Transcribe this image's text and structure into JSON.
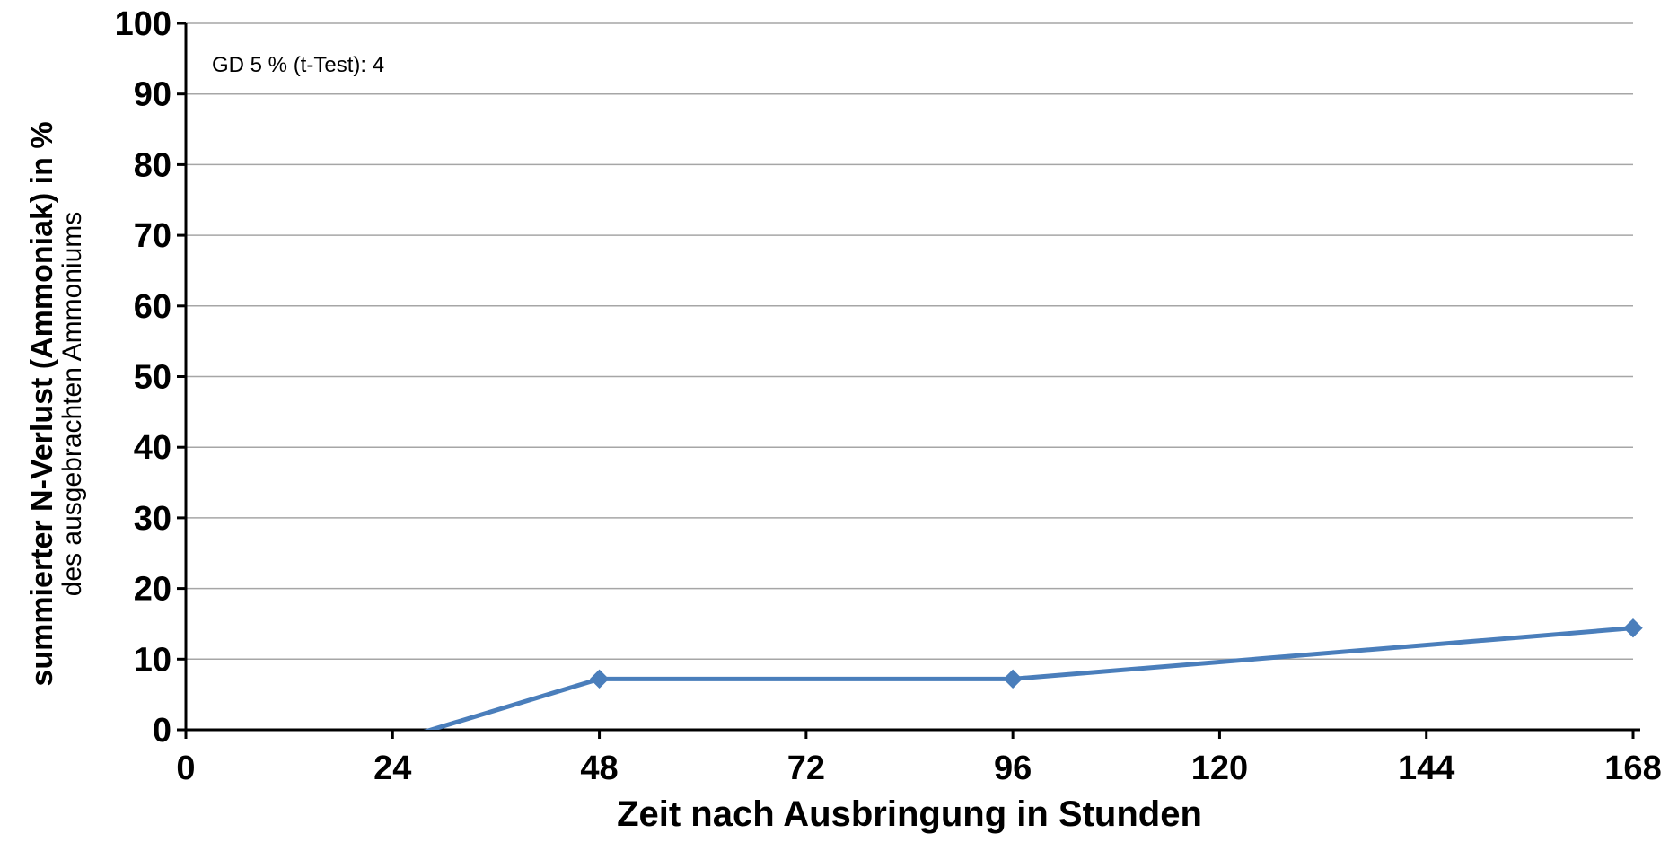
{
  "chart_data": {
    "type": "line",
    "xlabel": "Zeit nach Ausbringung in Stunden",
    "ylabel": "summierter N-Verlust (Ammoniak) in %",
    "ylabel_sub": "des ausgebrachten Ammoniums",
    "annotation": "GD 5 % (t-Test): 4",
    "xlim": [
      0,
      168
    ],
    "ylim": [
      0,
      100
    ],
    "x_ticks": [
      "0",
      "24",
      "48",
      "72",
      "96",
      "120",
      "144",
      "168"
    ],
    "y_ticks": [
      "0",
      "10",
      "20",
      "30",
      "40",
      "50",
      "60",
      "70",
      "80",
      "90",
      "100"
    ],
    "grid": "horizontal",
    "legend": "none",
    "series": [
      {
        "x": [
          0,
          48,
          96,
          168
        ],
        "values": [
          -10.5,
          7.2,
          7.2,
          14.4
        ],
        "color": "#4a7ebb",
        "marker": "diamond"
      }
    ]
  }
}
